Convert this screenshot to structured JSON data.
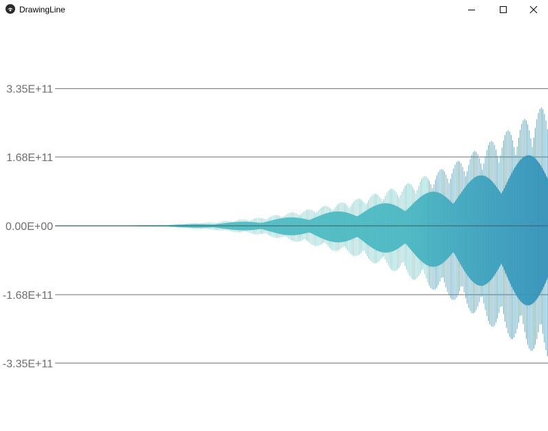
{
  "window": {
    "title": "DrawingLine",
    "icon": "kivy-logo-icon",
    "controls": [
      "minimize-icon",
      "maximize-icon",
      "close-icon"
    ]
  },
  "colors": {
    "axis_line": "#8a8a8a",
    "tick_label": "#6d6d6d",
    "wave_light": "#52c0c0",
    "wave_dark": "#2f8fb8"
  },
  "chart_data": {
    "type": "line",
    "title": "",
    "xlabel": "",
    "ylabel": "",
    "ylim": [
      -430000000000.0,
      410000000000.0
    ],
    "yticks": [
      335000000000.0,
      168000000000.0,
      0,
      -168000000000.0,
      -335000000000.0
    ],
    "ytick_labels": [
      "3.35E+11",
      "1.68E+11",
      "0.00E+00",
      "-1.68E+11",
      "-3.35E+11"
    ],
    "grid": true,
    "legend": "none",
    "series": [
      {
        "envelope_samples_x": [
          0,
          0.1,
          0.2,
          0.3,
          0.4,
          0.5,
          0.6,
          0.7,
          0.8,
          0.9,
          1.0
        ],
        "envelope_upper": [
          0,
          500000000.0,
          3000000000.0,
          9000000000.0,
          20000000000.0,
          40000000000.0,
          65000000000.0,
          100000000000.0,
          150000000000.0,
          220000000000.0,
          300000000000.0
        ],
        "envelope_lower": [
          0,
          -500000000.0,
          -3000000000.0,
          -10000000000.0,
          -22000000000.0,
          -45000000000.0,
          -75000000000.0,
          -120000000000.0,
          -180000000000.0,
          -260000000000.0,
          -330000000000.0
        ]
      }
    ]
  }
}
